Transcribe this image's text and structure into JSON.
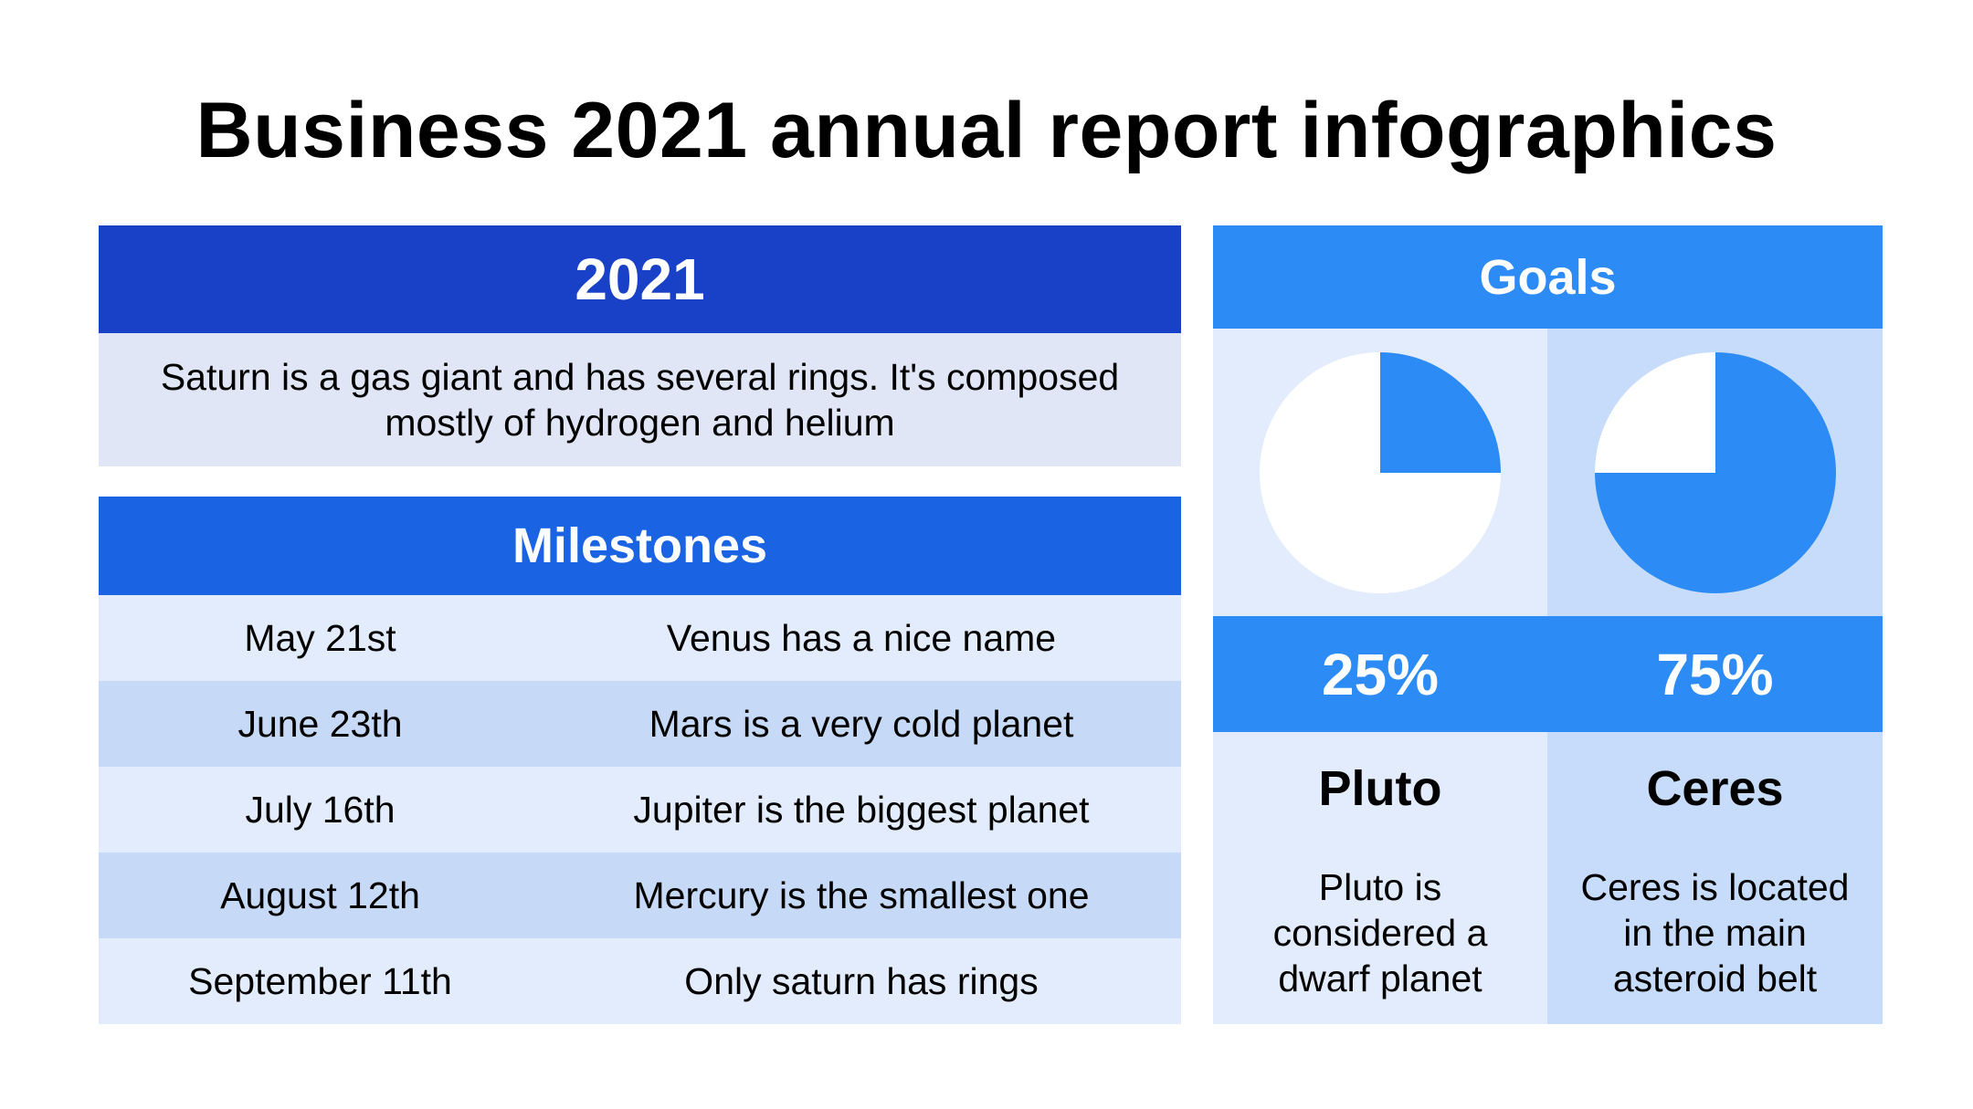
{
  "title": "Business 2021 annual report infographics",
  "year_panel": {
    "header": "2021",
    "description": "Saturn is a gas giant and has several rings. It's composed mostly of hydrogen and helium"
  },
  "milestones": {
    "header": "Milestones",
    "rows": [
      {
        "date": "May 21st",
        "text": "Venus has a nice name"
      },
      {
        "date": "June 23th",
        "text": "Mars is a very cold planet"
      },
      {
        "date": "July 16th",
        "text": "Jupiter is the biggest planet"
      },
      {
        "date": "August 12th",
        "text": "Mercury is the smallest one"
      },
      {
        "date": "September 11th",
        "text": "Only saturn has rings"
      }
    ]
  },
  "goals": {
    "header": "Goals",
    "items": [
      {
        "percent_label": "25%",
        "fraction": 0.25,
        "name": "Pluto",
        "description": "Pluto is considered a dwarf planet"
      },
      {
        "percent_label": "75%",
        "fraction": 0.75,
        "name": "Ceres",
        "description": "Ceres is located in the main asteroid belt"
      }
    ]
  },
  "colors": {
    "dark_blue": "#1941c7",
    "medium_blue": "#1a63e3",
    "accent_blue": "#2c8bf4",
    "pie_fill": "#2c8bf4",
    "pie_bg": "#ffffff"
  }
}
